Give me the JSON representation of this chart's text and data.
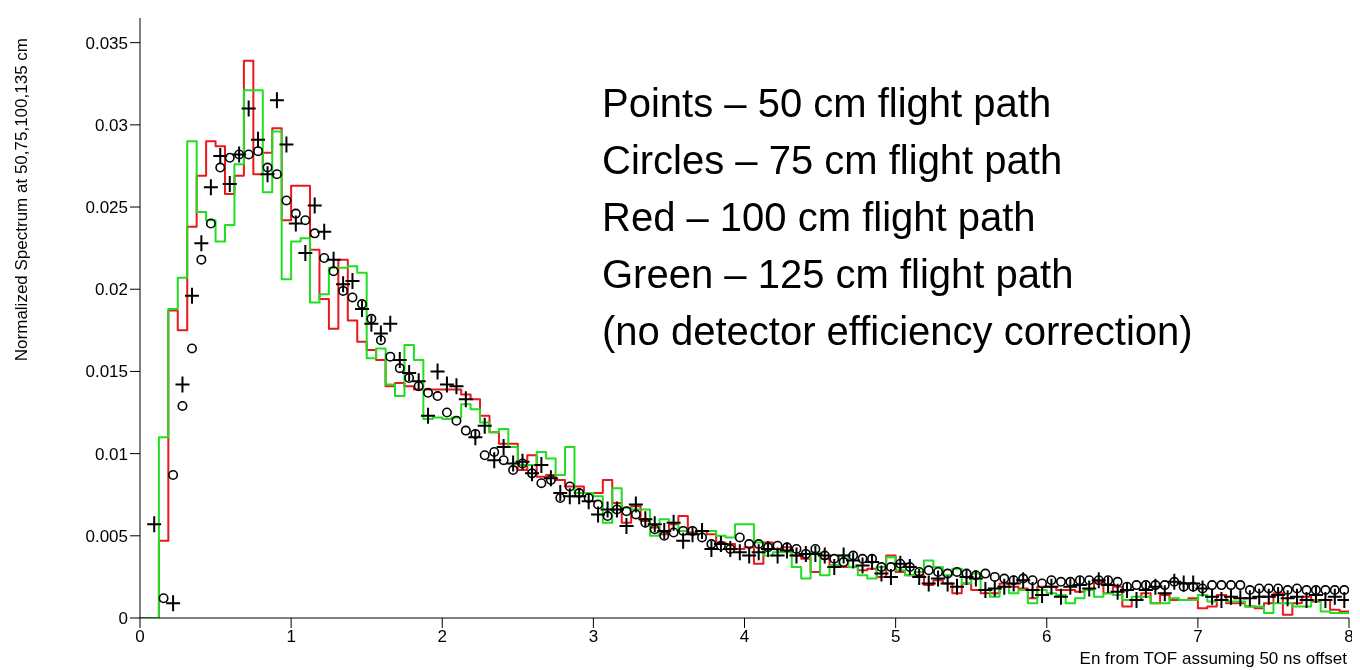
{
  "chart_data": {
    "type": "histogram",
    "xlabel": "En from TOF assuming 50 ns offset",
    "ylabel": "Normalized Spectrum at 50,75,100,135 cm",
    "annotations": [
      "Points – 50 cm flight path",
      "Circles – 75 cm flight path",
      "Red – 100 cm flight path",
      "Green – 125 cm flight path",
      "(no detector efficiency correction)"
    ],
    "xlim": [
      0,
      8
    ],
    "xticks": [
      0,
      1,
      2,
      3,
      4,
      5,
      6,
      7,
      8
    ],
    "ylim": [
      0,
      0.0365
    ],
    "yticks": [
      0,
      0.005,
      0.01,
      0.015,
      0.02,
      0.025,
      0.03,
      0.035
    ],
    "grid": false,
    "bins": [
      0,
      0.0625,
      0.125,
      0.1875,
      0.25,
      0.3125,
      0.375,
      0.4375,
      0.5,
      0.5625,
      0.625,
      0.6875,
      0.75,
      0.8125,
      0.875,
      0.9375,
      1,
      1.0625,
      1.125,
      1.1875,
      1.25,
      1.3125,
      1.375,
      1.4375,
      1.5,
      1.5625,
      1.625,
      1.6875,
      1.75,
      1.8125,
      1.875,
      1.9375,
      2,
      2.0625,
      2.125,
      2.1875,
      2.25,
      2.3125,
      2.375,
      2.4375,
      2.5,
      2.5625,
      2.625,
      2.6875,
      2.75,
      2.8125,
      2.875,
      2.9375,
      3,
      3.0625,
      3.125,
      3.1875,
      3.25,
      3.3125,
      3.375,
      3.4375,
      3.5,
      3.5625,
      3.625,
      3.6875,
      3.75,
      3.8125,
      3.875,
      3.9375,
      4,
      4.0625,
      4.125,
      4.1875,
      4.25,
      4.3125,
      4.375,
      4.4375,
      4.5,
      4.5625,
      4.625,
      4.6875,
      4.75,
      4.8125,
      4.875,
      4.9375,
      5,
      5.0625,
      5.125,
      5.1875,
      5.25,
      5.3125,
      5.375,
      5.4375,
      5.5,
      5.5625,
      5.625,
      5.6875,
      5.75,
      5.8125,
      5.875,
      5.9375,
      6,
      6.0625,
      6.125,
      6.1875,
      6.25,
      6.3125,
      6.375,
      6.4375,
      6.5,
      6.5625,
      6.625,
      6.6875,
      6.75,
      6.8125,
      6.875,
      6.9375,
      7,
      7.0625,
      7.125,
      7.1875,
      7.25,
      7.3125,
      7.375,
      7.4375,
      7.5,
      7.5625,
      7.625,
      7.6875,
      7.75,
      7.8125,
      7.875,
      7.9375,
      8
    ],
    "series": [
      {
        "color": "#e8191e",
        "values": [
          0,
          0,
          0.0047,
          0.0187,
          0.0175,
          0.0238,
          0.0269,
          0.029,
          0.0287,
          0.0258,
          0.0269,
          0.0339,
          0.027,
          0.0283,
          0.0298,
          0.0242,
          0.0263,
          0.0263,
          0.0224,
          0.0194,
          0.0176,
          0.0218,
          0.0181,
          0.0168,
          0.0163,
          0.0157,
          0.0141,
          0.0143,
          0.0141,
          0.0139,
          0.0139,
          0.0139,
          0.0139,
          0.0139,
          0.0136,
          0.0133,
          0.0123,
          0.0113,
          0.0106,
          0.0106,
          0.009,
          0.0099,
          0.0086,
          0.0087,
          0.0084,
          0.008,
          0.008,
          0.0076,
          0.0076,
          0.0084,
          0.007,
          0.0058,
          0.0068,
          0.0059,
          0.0055,
          0.0051,
          0.0057,
          0.0062,
          0.0052,
          0.0053,
          0.0051,
          0.0046,
          0.0045,
          0.0042,
          0.0043,
          0.0033,
          0.0046,
          0.0042,
          0.0043,
          0.0038,
          0.0036,
          0.0028,
          0.0036,
          0.0032,
          0.0031,
          0.0031,
          0.0029,
          0.003,
          0.0025,
          0.0038,
          0.0028,
          0.0026,
          0.0026,
          0.002,
          0.0023,
          0.0021,
          0.0015,
          0.0021,
          0.0017,
          0.0015,
          0.0015,
          0.0021,
          0.0019,
          0.0018,
          0.0012,
          0.0019,
          0.0019,
          0.0017,
          0.0017,
          0.0016,
          0.0017,
          0.0022,
          0.0015,
          0.0019,
          0.0007,
          0.0011,
          0.0015,
          0.0009,
          0.0014,
          0.0011,
          0.0011,
          0.0012,
          0.0006,
          0.0007,
          0.0014,
          0.0009,
          0.0009,
          0.0007,
          0.0006,
          0.0009,
          0.0015,
          0.0002,
          0.0009,
          0.0013,
          0.001,
          0.0011,
          0.0005,
          0.0004
        ]
      },
      {
        "color": "#22dd22",
        "values": [
          0,
          0,
          0.011,
          0.0188,
          0.0207,
          0.029,
          0.0247,
          0.0242,
          0.0229,
          0.0239,
          0.0276,
          0.0321,
          0.0321,
          0.0259,
          0.0296,
          0.0206,
          0.0229,
          0.0231,
          0.0192,
          0.0197,
          0.0213,
          0.0213,
          0.0214,
          0.021,
          0.0158,
          0.0164,
          0.0142,
          0.0135,
          0.0166,
          0.0157,
          0.0121,
          0.0122,
          0.0121,
          0.0122,
          0.013,
          0.0127,
          0.0119,
          0.0113,
          0.0115,
          0.0104,
          0.0093,
          0.0093,
          0.0101,
          0.0097,
          0.0087,
          0.0104,
          0.0076,
          0.0076,
          0.0074,
          0.0058,
          0.0079,
          0.0067,
          0.0066,
          0.0066,
          0.005,
          0.006,
          0.0058,
          0.0053,
          0.0051,
          0.0053,
          0.0053,
          0.005,
          0.0049,
          0.0057,
          0.0057,
          0.0046,
          0.0038,
          0.004,
          0.004,
          0.0031,
          0.0024,
          0.004,
          0.0026,
          0.0032,
          0.0038,
          0.0031,
          0.0026,
          0.0024,
          0.0031,
          0.0037,
          0.0029,
          0.0026,
          0.0028,
          0.0035,
          0.0031,
          0.0026,
          0.003,
          0.0021,
          0.0027,
          0.0017,
          0.0013,
          0.0019,
          0.0015,
          0.0017,
          0.0009,
          0.0017,
          0.0015,
          0.0014,
          0.0009,
          0.0012,
          0.0017,
          0.0013,
          0.0015,
          0.0014,
          0.0011,
          0.0013,
          0.0013,
          0.0009,
          0.0009,
          0.0012,
          0.0011,
          0.0011,
          0.0014,
          0.001,
          0.0011,
          0.001,
          0.001,
          0.0007,
          0.0007,
          0.0003,
          0.0009,
          0.0009,
          0.0007,
          0.0007,
          0.0011,
          0.0004,
          0.0003,
          0.0003
        ]
      },
      {
        "type": "scatter",
        "marker": "cross",
        "color": "#000000",
        "x": [
          0.094,
          0.219,
          0.281,
          0.344,
          0.406,
          0.469,
          0.531,
          0.594,
          0.656,
          0.719,
          0.781,
          0.844,
          0.906,
          0.969,
          1.031,
          1.094,
          1.156,
          1.219,
          1.281,
          1.344,
          1.406,
          1.469,
          1.531,
          1.594,
          1.656,
          1.719,
          1.781,
          1.844,
          1.906,
          1.969,
          2.031,
          2.094,
          2.156,
          2.219,
          2.281,
          2.344,
          2.406,
          2.469,
          2.531,
          2.594,
          2.656,
          2.719,
          2.781,
          2.844,
          2.906,
          2.969,
          3.031,
          3.094,
          3.156,
          3.219,
          3.281,
          3.344,
          3.406,
          3.469,
          3.531,
          3.594,
          3.656,
          3.719,
          3.781,
          3.844,
          3.906,
          3.969,
          4.031,
          4.094,
          4.156,
          4.219,
          4.281,
          4.344,
          4.406,
          4.469,
          4.531,
          4.594,
          4.656,
          4.719,
          4.781,
          4.844,
          4.906,
          4.969,
          5.031,
          5.094,
          5.156,
          5.219,
          5.281,
          5.344,
          5.406,
          5.469,
          5.531,
          5.594,
          5.656,
          5.719,
          5.781,
          5.844,
          5.906,
          5.969,
          6.031,
          6.094,
          6.156,
          6.219,
          6.281,
          6.344,
          6.406,
          6.469,
          6.531,
          6.594,
          6.656,
          6.719,
          6.781,
          6.844,
          6.906,
          6.969,
          7.031,
          7.094,
          7.156,
          7.219,
          7.281,
          7.344,
          7.406,
          7.469,
          7.531,
          7.594,
          7.656,
          7.719,
          7.781,
          7.844,
          7.906,
          7.969
        ],
        "values": [
          0.0057,
          0.0009,
          0.0142,
          0.0196,
          0.0228,
          0.0262,
          0.0281,
          0.0264,
          0.0282,
          0.031,
          0.0291,
          0.027,
          0.0315,
          0.0288,
          0.024,
          0.0222,
          0.0251,
          0.0235,
          0.0218,
          0.0203,
          0.0205,
          0.0188,
          0.0179,
          0.0173,
          0.0179,
          0.0157,
          0.0149,
          0.0144,
          0.0123,
          0.015,
          0.0142,
          0.0141,
          0.0133,
          0.011,
          0.0117,
          0.0096,
          0.0104,
          0.0094,
          0.0095,
          0.0088,
          0.0093,
          0.0085,
          0.0076,
          0.0074,
          0.0074,
          0.0071,
          0.0063,
          0.0066,
          0.0066,
          0.0056,
          0.0069,
          0.006,
          0.0057,
          0.0053,
          0.0058,
          0.0047,
          0.0051,
          0.0053,
          0.0042,
          0.0045,
          0.0042,
          0.004,
          0.0038,
          0.004,
          0.0042,
          0.0038,
          0.0041,
          0.0038,
          0.0039,
          0.0039,
          0.0038,
          0.0031,
          0.0038,
          0.0035,
          0.0032,
          0.0034,
          0.0027,
          0.0025,
          0.0033,
          0.0031,
          0.0025,
          0.0021,
          0.0024,
          0.0021,
          0.0019,
          0.0025,
          0.0024,
          0.0017,
          0.0018,
          0.0019,
          0.0021,
          0.0023,
          0.0017,
          0.0014,
          0.0019,
          0.0013,
          0.0019,
          0.002,
          0.0018,
          0.0023,
          0.002,
          0.0016,
          0.0017,
          0.0011,
          0.0017,
          0.0019,
          0.0015,
          0.0022,
          0.0021,
          0.0021,
          0.0018,
          0.0013,
          0.0011,
          0.0013,
          0.0012,
          0.0012,
          0.0013,
          0.0013,
          0.0014,
          0.0012,
          0.0013,
          0.0011,
          0.0014,
          0.0011,
          0.0013,
          0.0011
        ]
      },
      {
        "type": "scatter",
        "marker": "circle",
        "color": "#000000",
        "x": [
          0.156,
          0.219,
          0.281,
          0.344,
          0.406,
          0.469,
          0.531,
          0.594,
          0.656,
          0.719,
          0.781,
          0.844,
          0.906,
          0.969,
          1.031,
          1.094,
          1.156,
          1.219,
          1.281,
          1.344,
          1.406,
          1.469,
          1.531,
          1.594,
          1.656,
          1.719,
          1.781,
          1.844,
          1.906,
          1.969,
          2.031,
          2.094,
          2.156,
          2.219,
          2.281,
          2.344,
          2.406,
          2.469,
          2.531,
          2.594,
          2.656,
          2.719,
          2.781,
          2.844,
          2.906,
          2.969,
          3.031,
          3.094,
          3.156,
          3.219,
          3.281,
          3.344,
          3.406,
          3.469,
          3.531,
          3.594,
          3.656,
          3.719,
          3.781,
          3.844,
          3.906,
          3.969,
          4.031,
          4.094,
          4.156,
          4.219,
          4.281,
          4.344,
          4.406,
          4.469,
          4.531,
          4.594,
          4.656,
          4.719,
          4.781,
          4.844,
          4.906,
          4.969,
          5.031,
          5.094,
          5.156,
          5.219,
          5.281,
          5.344,
          5.406,
          5.469,
          5.531,
          5.594,
          5.656,
          5.719,
          5.781,
          5.844,
          5.906,
          5.969,
          6.031,
          6.094,
          6.156,
          6.219,
          6.281,
          6.344,
          6.406,
          6.469,
          6.531,
          6.594,
          6.656,
          6.719,
          6.781,
          6.844,
          6.906,
          6.969,
          7.031,
          7.094,
          7.156,
          7.219,
          7.281,
          7.344,
          7.406,
          7.469,
          7.531,
          7.594,
          7.656,
          7.719,
          7.781,
          7.844,
          7.906,
          7.969
        ],
        "values": [
          0.0012,
          0.0087,
          0.0129,
          0.0164,
          0.0218,
          0.024,
          0.0274,
          0.028,
          0.0282,
          0.0282,
          0.0284,
          0.0274,
          0.027,
          0.0254,
          0.0246,
          0.0242,
          0.0234,
          0.0219,
          0.0211,
          0.0199,
          0.0195,
          0.0191,
          0.0182,
          0.0169,
          0.0159,
          0.0152,
          0.0146,
          0.0141,
          0.0137,
          0.0135,
          0.0125,
          0.012,
          0.0114,
          0.0112,
          0.0099,
          0.0101,
          0.0096,
          0.009,
          0.0094,
          0.0088,
          0.0082,
          0.0084,
          0.0073,
          0.008,
          0.0076,
          0.0073,
          0.0069,
          0.0062,
          0.0066,
          0.0065,
          0.0063,
          0.0058,
          0.0054,
          0.005,
          0.0052,
          0.0053,
          0.0053,
          0.0049,
          0.0045,
          0.0044,
          0.0042,
          0.0049,
          0.0045,
          0.0045,
          0.0043,
          0.0044,
          0.0043,
          0.0042,
          0.0039,
          0.0042,
          0.0038,
          0.0036,
          0.0034,
          0.0038,
          0.0036,
          0.0036,
          0.0031,
          0.0031,
          0.0033,
          0.0031,
          0.0028,
          0.0029,
          0.0028,
          0.0027,
          0.0028,
          0.0027,
          0.0026,
          0.0027,
          0.0025,
          0.0024,
          0.0023,
          0.0024,
          0.0023,
          0.0021,
          0.0023,
          0.0022,
          0.0022,
          0.0023,
          0.0023,
          0.0023,
          0.0023,
          0.0022,
          0.0019,
          0.002,
          0.002,
          0.002,
          0.002,
          0.0022,
          0.0019,
          0.0019,
          0.0018,
          0.002,
          0.002,
          0.002,
          0.002,
          0.0017,
          0.0018,
          0.0018,
          0.0018,
          0.0017,
          0.0018,
          0.0017,
          0.0017,
          0.0017,
          0.0017,
          0.0017
        ]
      }
    ]
  }
}
